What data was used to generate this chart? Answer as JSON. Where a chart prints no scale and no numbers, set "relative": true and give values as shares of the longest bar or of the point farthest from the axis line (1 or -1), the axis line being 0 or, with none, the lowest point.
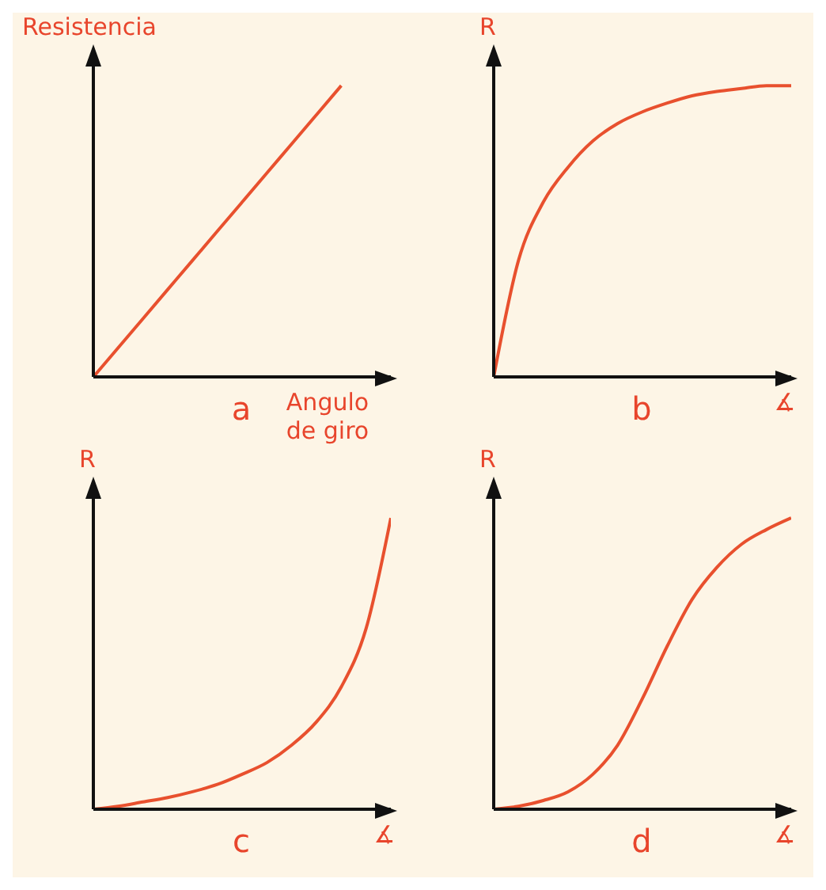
{
  "chart_data": [
    {
      "type": "line",
      "title": "a",
      "xlabel": "Angulo de giro",
      "ylabel": "Resistencia",
      "relative": true,
      "marker": "none",
      "line_style": "solid",
      "categories": [
        null,
        null,
        null,
        null,
        null,
        null,
        null,
        null,
        null,
        null,
        null,
        null,
        null
      ],
      "series": [
        {
          "color": "#e8502e",
          "values": [
            0,
            0.1,
            0.2,
            0.3,
            0.4,
            0.5,
            0.6,
            0.7,
            0.8,
            0.9,
            1,
            null,
            null
          ]
        }
      ]
    },
    {
      "type": "line",
      "title": "b",
      "xlabel": "∡",
      "ylabel": "R",
      "relative": true,
      "marker": "none",
      "line_style": "solid",
      "categories": [
        null,
        null,
        null,
        null,
        null,
        null,
        null,
        null,
        null,
        null,
        null,
        null,
        null
      ],
      "series": [
        {
          "color": "#e8502e",
          "values": [
            0,
            0.4,
            0.6,
            0.72,
            0.81,
            0.87,
            0.91,
            0.94,
            0.965,
            0.98,
            0.99,
            1,
            1
          ]
        }
      ]
    },
    {
      "type": "line",
      "title": "c",
      "xlabel": "∡",
      "ylabel": "R",
      "relative": true,
      "marker": "none",
      "line_style": "solid",
      "categories": [
        null,
        null,
        null,
        null,
        null,
        null,
        null,
        null,
        null,
        null,
        null,
        null,
        null
      ],
      "series": [
        {
          "color": "#e8502e",
          "values": [
            0,
            0.01,
            0.025,
            0.04,
            0.06,
            0.085,
            0.12,
            0.16,
            0.22,
            0.3,
            0.42,
            0.62,
            1
          ]
        }
      ]
    },
    {
      "type": "line",
      "title": "d",
      "xlabel": "∡",
      "ylabel": "R",
      "relative": true,
      "marker": "none",
      "line_style": "solid",
      "categories": [
        null,
        null,
        null,
        null,
        null,
        null,
        null,
        null,
        null,
        null,
        null,
        null,
        null
      ],
      "series": [
        {
          "color": "#e8502e",
          "values": [
            0,
            0.01,
            0.03,
            0.06,
            0.12,
            0.22,
            0.38,
            0.56,
            0.72,
            0.83,
            0.91,
            0.96,
            1
          ]
        }
      ]
    }
  ]
}
